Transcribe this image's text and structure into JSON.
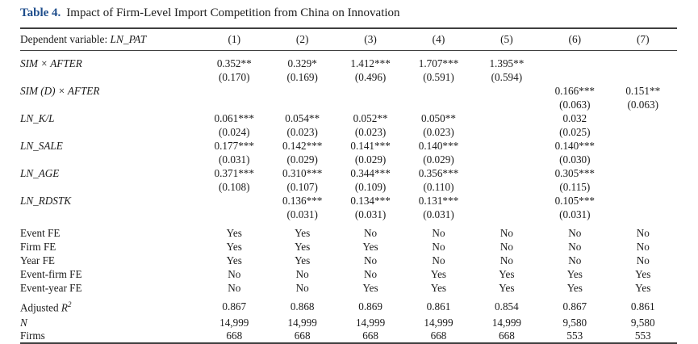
{
  "page": {
    "title_label": "Table 4.",
    "title_text": "Impact of Firm-Level Import Competition from China on Innovation"
  },
  "table": {
    "header": {
      "dep_var_label": "Dependent variable: ",
      "dep_var_name": "LN_PAT",
      "columns": [
        "(1)",
        "(2)",
        "(3)",
        "(4)",
        "(5)",
        "(6)",
        "(7)"
      ]
    },
    "coefficient_rows": [
      {
        "label": "SIM × AFTER",
        "coefs": [
          "0.352**",
          "0.329*",
          "1.412***",
          "1.707***",
          "1.395**",
          "",
          ""
        ],
        "ses": [
          "(0.170)",
          "(0.169)",
          "(0.496)",
          "(0.591)",
          "(0.594)",
          "",
          ""
        ]
      },
      {
        "label": "SIM (D) × AFTER",
        "coefs": [
          "",
          "",
          "",
          "",
          "",
          "0.166***",
          "0.151**"
        ],
        "ses": [
          "",
          "",
          "",
          "",
          "",
          "(0.063)",
          "(0.063)"
        ]
      },
      {
        "label": "LN_K/L",
        "coefs": [
          "0.061***",
          "0.054**",
          "0.052**",
          "0.050**",
          "",
          "0.032",
          ""
        ],
        "ses": [
          "(0.024)",
          "(0.023)",
          "(0.023)",
          "(0.023)",
          "",
          "(0.025)",
          ""
        ]
      },
      {
        "label": "LN_SALE",
        "coefs": [
          "0.177***",
          "0.142***",
          "0.141***",
          "0.140***",
          "",
          "0.140***",
          ""
        ],
        "ses": [
          "(0.031)",
          "(0.029)",
          "(0.029)",
          "(0.029)",
          "",
          "(0.030)",
          ""
        ]
      },
      {
        "label": "LN_AGE",
        "coefs": [
          "0.371***",
          "0.310***",
          "0.344***",
          "0.356***",
          "",
          "0.305***",
          ""
        ],
        "ses": [
          "(0.108)",
          "(0.107)",
          "(0.109)",
          "(0.110)",
          "",
          "(0.115)",
          ""
        ]
      },
      {
        "label": "LN_RDSTK",
        "coefs": [
          "",
          "0.136***",
          "0.134***",
          "0.131***",
          "",
          "0.105***",
          ""
        ],
        "ses": [
          "",
          "(0.031)",
          "(0.031)",
          "(0.031)",
          "",
          "(0.031)",
          ""
        ]
      }
    ],
    "fixed_effect_rows": [
      {
        "label": "Event FE",
        "values": [
          "Yes",
          "Yes",
          "No",
          "No",
          "No",
          "No",
          "No"
        ]
      },
      {
        "label": "Firm FE",
        "values": [
          "Yes",
          "Yes",
          "Yes",
          "No",
          "No",
          "No",
          "No"
        ]
      },
      {
        "label": "Year FE",
        "values": [
          "Yes",
          "Yes",
          "No",
          "No",
          "No",
          "No",
          "No"
        ]
      },
      {
        "label": "Event-firm FE",
        "values": [
          "No",
          "No",
          "No",
          "Yes",
          "Yes",
          "Yes",
          "Yes"
        ]
      },
      {
        "label": "Event-year FE",
        "values": [
          "No",
          "No",
          "Yes",
          "Yes",
          "Yes",
          "Yes",
          "Yes"
        ]
      }
    ],
    "stat_rows": [
      {
        "label_prefix": "Adjusted ",
        "label_italic": "R",
        "label_sup": "2",
        "values": [
          "0.867",
          "0.868",
          "0.869",
          "0.861",
          "0.854",
          "0.867",
          "0.861"
        ]
      },
      {
        "label_prefix": "",
        "label_italic": "N",
        "label_sup": "",
        "values": [
          "14,999",
          "14,999",
          "14,999",
          "14,999",
          "14,999",
          "9,580",
          "9,580"
        ]
      },
      {
        "label_prefix": "Firms",
        "label_italic": "",
        "label_sup": "",
        "values": [
          "668",
          "668",
          "668",
          "668",
          "668",
          "553",
          "553"
        ]
      }
    ]
  },
  "colors": {
    "title_accent": "#1f4e8c",
    "text": "#1c1c1c",
    "rule": "#3f3f3f",
    "background": "#ffffff"
  }
}
